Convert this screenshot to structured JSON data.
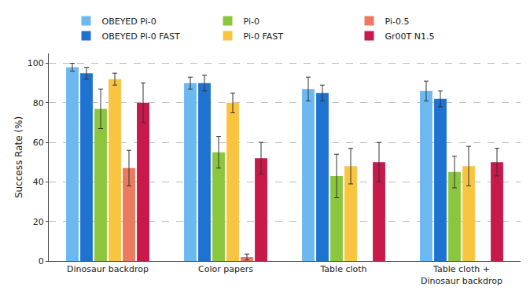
{
  "chart_data": {
    "type": "bar",
    "y_label": "Success Rate (%)",
    "categories": [
      "Dinosaur backdrop",
      "Color papers",
      "Table cloth",
      "Table cloth + Dinosaur backdrop"
    ],
    "series": [
      {
        "name": "OBEYED Pi-0",
        "color": "#6cb8f0",
        "values": [
          98,
          90,
          87,
          86
        ],
        "error": [
          2,
          3,
          6,
          5
        ]
      },
      {
        "name": "OBEYED Pi-0 FAST",
        "color": "#1f72d0",
        "values": [
          95,
          90,
          85,
          82
        ],
        "error": [
          3,
          4,
          4,
          4
        ]
      },
      {
        "name": "Pi-0",
        "color": "#8cc63f",
        "values": [
          77,
          55,
          43,
          45
        ],
        "error": [
          10,
          8,
          11,
          8
        ]
      },
      {
        "name": "Pi-0 FAST",
        "color": "#f9c440",
        "values": [
          92,
          80,
          48,
          48
        ],
        "error": [
          3,
          5,
          9,
          10
        ]
      },
      {
        "name": "Pi-0.5",
        "color": "#ec7a5f",
        "values": [
          47,
          2,
          null,
          null
        ],
        "error": [
          9,
          1.5,
          null,
          null
        ]
      },
      {
        "name": "Gr00T N1.5",
        "color": "#c8194b",
        "values": [
          80,
          52,
          50,
          50
        ],
        "error": [
          10,
          8,
          10,
          7
        ]
      }
    ],
    "ylim": [
      0,
      105
    ],
    "yticks": [
      0,
      20,
      40,
      60,
      80,
      100
    ],
    "grid": true,
    "legend": "top"
  }
}
